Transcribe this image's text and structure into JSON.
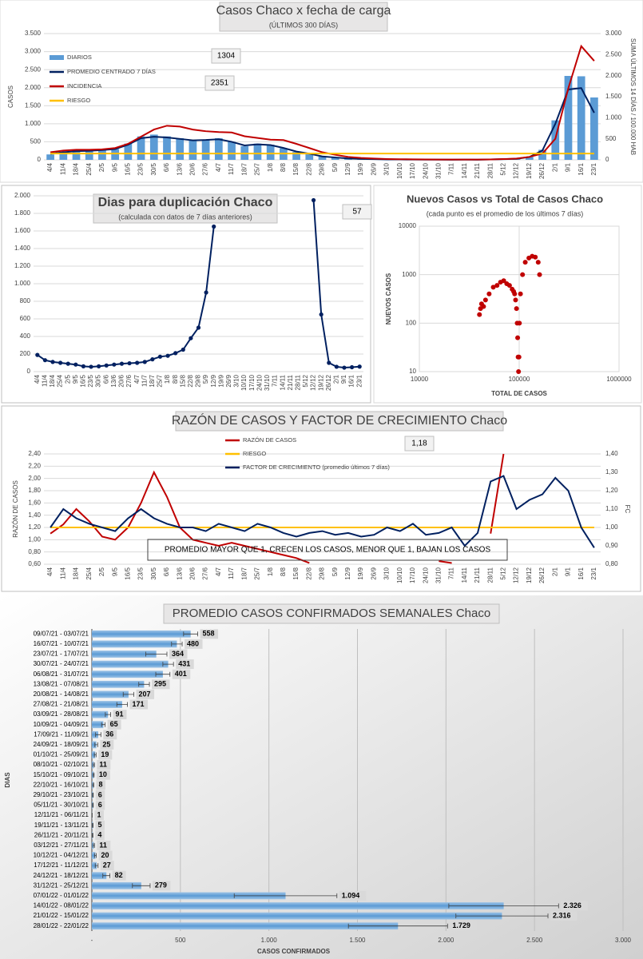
{
  "chart_data": [
    {
      "type": "combo",
      "title": "Casos  Chaco  x fecha de carga",
      "subtitle": "(ÚLTIMOS 300 DÍAS)",
      "y_label": "CASOS",
      "y2_label": "SUMA  ÚLTIMOS 14 DÍAS / 100.000 HAB",
      "legend": "upper left",
      "categories": [
        "4/4",
        "11/4",
        "18/4",
        "25/4",
        "2/5",
        "9/5",
        "16/5",
        "23/5",
        "30/5",
        "6/6",
        "13/6",
        "20/6",
        "27/6",
        "4/7",
        "11/7",
        "18/7",
        "25/7",
        "1/8",
        "8/8",
        "15/8",
        "22/8",
        "29/8",
        "5/9",
        "12/9",
        "19/9",
        "26/9",
        "3/10",
        "10/10",
        "17/10",
        "24/10",
        "31/10",
        "7/11",
        "14/11",
        "21/11",
        "28/11",
        "5/12",
        "12/12",
        "19/12",
        "26/12",
        "2/1",
        "9/1",
        "16/1",
        "23/1"
      ],
      "ylim": [
        0,
        3500
      ],
      "yticks": [
        {
          "value": 0,
          "label": "0"
        },
        {
          "value": 500,
          "label": "500"
        },
        {
          "value": 1000,
          "label": "1.000"
        },
        {
          "value": 1500,
          "label": "1.500"
        },
        {
          "value": 2000,
          "label": "2.000"
        },
        {
          "value": 2500,
          "label": "2.500"
        },
        {
          "value": 3000,
          "label": "3.000"
        },
        {
          "value": 3500,
          "label": "3.500"
        }
      ],
      "y2lim": [
        0,
        3000
      ],
      "y2ticks": [
        {
          "value": 0,
          "label": "0"
        },
        {
          "value": 500,
          "label": "500"
        },
        {
          "value": 1000,
          "label": "1.000"
        },
        {
          "value": 1500,
          "label": "1.500"
        },
        {
          "value": 2000,
          "label": "2.000"
        },
        {
          "value": 2500,
          "label": "2.500"
        },
        {
          "value": 3000,
          "label": "3.000"
        }
      ],
      "annotations": [
        1304,
        2351
      ],
      "series": [
        {
          "name": "DIARIOS",
          "type": "bar",
          "color": "#5b9bd5",
          "values": [
            150,
            200,
            250,
            260,
            280,
            300,
            450,
            650,
            700,
            650,
            600,
            550,
            560,
            600,
            500,
            380,
            450,
            420,
            320,
            220,
            170,
            90,
            65,
            36,
            25,
            19,
            11,
            10,
            8,
            6,
            6,
            1,
            5,
            4,
            11,
            20,
            27,
            82,
            279,
            1094,
            2326,
            2316,
            1729
          ]
        },
        {
          "name": "PROMEDIO CENTRADO 7 DÍAS",
          "type": "line",
          "color": "#002060",
          "values": [
            170,
            210,
            240,
            250,
            270,
            300,
            420,
            600,
            640,
            620,
            580,
            540,
            550,
            570,
            500,
            400,
            430,
            410,
            330,
            230,
            170,
            95,
            65,
            38,
            26,
            19,
            12,
            10,
            8,
            6,
            6,
            2,
            5,
            4,
            11,
            20,
            27,
            80,
            260,
            1000,
            1950,
            1990,
            1304
          ]
        },
        {
          "name": "INCIDENCIA",
          "type": "line",
          "color": "#c00000",
          "axis": "y2",
          "values": [
            180,
            220,
            240,
            240,
            250,
            280,
            380,
            550,
            720,
            810,
            790,
            720,
            680,
            660,
            650,
            560,
            520,
            480,
            470,
            380,
            280,
            180,
            120,
            70,
            45,
            30,
            20,
            15,
            12,
            10,
            8,
            6,
            6,
            6,
            10,
            18,
            30,
            70,
            150,
            500,
            1700,
            2700,
            2351
          ]
        },
        {
          "name": "RIESGO",
          "type": "line",
          "color": "#ffc000",
          "axis": "y2",
          "values": [
            150,
            150,
            150,
            150,
            150,
            150,
            150,
            150,
            150,
            150,
            150,
            150,
            150,
            150,
            150,
            150,
            150,
            150,
            150,
            150,
            150,
            150,
            150,
            150,
            150,
            150,
            150,
            150,
            150,
            150,
            150,
            150,
            150,
            150,
            150,
            150,
            150,
            150,
            150,
            150,
            150,
            150,
            150
          ]
        }
      ]
    },
    {
      "type": "line",
      "title": "Dias para duplicación Chaco",
      "subtitle": "(calculada con datos de 7 días anteriores)",
      "categories": [
        "4/4",
        "11/4",
        "18/4",
        "25/4",
        "2/5",
        "9/5",
        "16/5",
        "23/5",
        "30/5",
        "6/6",
        "13/6",
        "20/6",
        "27/6",
        "4/7",
        "11/7",
        "18/7",
        "25/7",
        "1/8",
        "8/8",
        "15/8",
        "22/8",
        "29/8",
        "5/9",
        "12/9",
        "19/9",
        "26/9",
        "3/10",
        "10/10",
        "17/10",
        "24/10",
        "31/10",
        "7/11",
        "14/11",
        "21/11",
        "28/11",
        "5/12",
        "12/12",
        "19/12",
        "26/12",
        "2/1",
        "9/1",
        "16/1",
        "23/1"
      ],
      "ylim": [
        0,
        2000
      ],
      "yticks": [
        {
          "value": 0,
          "label": "0"
        },
        {
          "value": 200,
          "label": "200"
        },
        {
          "value": 400,
          "label": "400"
        },
        {
          "value": 600,
          "label": "600"
        },
        {
          "value": 800,
          "label": "800"
        },
        {
          "value": 1000,
          "label": "1.000"
        },
        {
          "value": 1200,
          "label": "1.200"
        },
        {
          "value": 1400,
          "label": "1.400"
        },
        {
          "value": 1600,
          "label": "1.600"
        },
        {
          "value": 1800,
          "label": "1.800"
        },
        {
          "value": 2000,
          "label": "2.000"
        }
      ],
      "annotations": [
        57
      ],
      "markers": true,
      "series": [
        {
          "name": null,
          "type": "line",
          "color": "#002060",
          "values": [
            190,
            130,
            110,
            100,
            90,
            80,
            60,
            55,
            60,
            70,
            80,
            90,
            95,
            100,
            110,
            140,
            170,
            180,
            210,
            250,
            380,
            500,
            900,
            1650,
            null,
            null,
            null,
            null,
            null,
            null,
            null,
            null,
            null,
            null,
            null,
            null,
            1950,
            650,
            100,
            55,
            45,
            50,
            57
          ]
        }
      ]
    },
    {
      "type": "scatter",
      "title": "Nuevos Casos vs Total de Casos Chaco",
      "subtitle": "(cada punto es el promedio de los últimos 7 días)",
      "x_label": "TOTAL DE CASOS",
      "y_label": "NUEVOS  CASOS",
      "log_x": true,
      "log_y": true,
      "xlim": [
        10000,
        1000000
      ],
      "xticks": [
        10000,
        100000,
        1000000
      ],
      "ylim": [
        10,
        10000
      ],
      "yticks": [
        10,
        100,
        1000,
        10000
      ],
      "series": [
        {
          "name": null,
          "color": "#c00000",
          "x": [
            40000,
            41000,
            42000,
            44000,
            46000,
            50000,
            55000,
            60000,
            65000,
            70000,
            75000,
            80000,
            85000,
            88000,
            90000,
            92000,
            94000,
            95500,
            96500,
            97500,
            98500,
            99500,
            100500,
            103000,
            108000,
            115000,
            125000,
            135000,
            145000,
            155000,
            160000
          ],
          "y": [
            150,
            200,
            250,
            220,
            300,
            400,
            550,
            600,
            700,
            750,
            650,
            600,
            500,
            450,
            400,
            300,
            200,
            100,
            50,
            20,
            10,
            20,
            100,
            400,
            1000,
            1800,
            2200,
            2400,
            2300,
            1800,
            1000
          ]
        }
      ]
    },
    {
      "type": "line",
      "title": "RAZÓN DE CASOS Y FACTOR DE CRECIMIENTO Chaco",
      "legend": "upper center",
      "y_label": "RAZÓN DE CASOS",
      "y2_label": "FC",
      "note": "PROMEDIO MAYOR QUE 1, CRECEN LOS CASOS, MENOR QUE 1, BAJAN LOS CASOS",
      "annotations": [
        {
          "value": 1.18,
          "label": "1,18"
        }
      ],
      "categories": [
        "4/4",
        "11/4",
        "18/4",
        "25/4",
        "2/5",
        "9/5",
        "16/5",
        "23/5",
        "30/5",
        "6/6",
        "13/6",
        "20/6",
        "27/6",
        "4/7",
        "11/7",
        "18/7",
        "25/7",
        "1/8",
        "8/8",
        "15/8",
        "22/8",
        "29/8",
        "5/9",
        "12/9",
        "19/9",
        "26/9",
        "3/10",
        "10/10",
        "17/10",
        "24/10",
        "31/10",
        "7/11",
        "14/11",
        "21/11",
        "28/11",
        "5/12",
        "12/12",
        "19/12",
        "26/12",
        "2/1",
        "9/1",
        "16/1",
        "23/1"
      ],
      "ylim": [
        0.6,
        2.4
      ],
      "yticks": [
        {
          "value": 0.6,
          "label": "0,60"
        },
        {
          "value": 0.8,
          "label": "0,80"
        },
        {
          "value": 1.0,
          "label": "1,00"
        },
        {
          "value": 1.2,
          "label": "1,20"
        },
        {
          "value": 1.4,
          "label": "1,40"
        },
        {
          "value": 1.6,
          "label": "1,60"
        },
        {
          "value": 1.8,
          "label": "1,80"
        },
        {
          "value": 2.0,
          "label": "2,00"
        },
        {
          "value": 2.2,
          "label": "2,20"
        },
        {
          "value": 2.4,
          "label": "2,40"
        }
      ],
      "y2lim": [
        0.8,
        1.4
      ],
      "y2ticks": [
        {
          "value": 0.8,
          "label": "0,80"
        },
        {
          "value": 0.9,
          "label": "0,90"
        },
        {
          "value": 1.0,
          "label": "1,00"
        },
        {
          "value": 1.1,
          "label": "1,10"
        },
        {
          "value": 1.2,
          "label": "1,20"
        },
        {
          "value": 1.3,
          "label": "1,30"
        },
        {
          "value": 1.4,
          "label": "1,40"
        }
      ],
      "series": [
        {
          "name": "RAZÓN DE CASOS",
          "type": "line",
          "color": "#c00000",
          "values": [
            1.1,
            1.25,
            1.5,
            1.3,
            1.05,
            1.0,
            1.2,
            1.6,
            2.1,
            1.7,
            1.2,
            1.0,
            0.95,
            0.9,
            0.95,
            0.9,
            0.85,
            0.8,
            0.75,
            0.7,
            0.62,
            null,
            null,
            null,
            null,
            null,
            null,
            null,
            null,
            null,
            0.65,
            0.62,
            null,
            null,
            1.1,
            2.4,
            null,
            null,
            null,
            null,
            null,
            null,
            1.18
          ]
        },
        {
          "name": "RIESGO",
          "type": "line",
          "color": "#ffc000",
          "values": [
            1.2,
            1.2,
            1.2,
            1.2,
            1.2,
            1.2,
            1.2,
            1.2,
            1.2,
            1.2,
            1.2,
            1.2,
            1.2,
            1.2,
            1.2,
            1.2,
            1.2,
            1.2,
            1.2,
            1.2,
            1.2,
            1.2,
            1.2,
            1.2,
            1.2,
            1.2,
            1.2,
            1.2,
            1.2,
            1.2,
            1.2,
            1.2,
            1.2,
            1.2,
            1.2,
            1.2,
            1.2,
            1.2,
            1.2,
            1.2,
            1.2,
            1.2,
            1.2
          ]
        },
        {
          "name": "FACTOR DE CRECIMIENTO (promedio últimos 7 días)",
          "type": "line",
          "color": "#002060",
          "axis": "y2",
          "values": [
            1.0,
            1.1,
            1.05,
            1.02,
            1.0,
            0.98,
            1.05,
            1.1,
            1.05,
            1.02,
            1.0,
            1.0,
            0.98,
            1.02,
            1.0,
            0.98,
            1.02,
            1.0,
            0.97,
            0.95,
            0.97,
            0.98,
            0.96,
            0.97,
            0.95,
            0.96,
            1.0,
            0.98,
            1.02,
            0.96,
            0.97,
            1.0,
            0.9,
            0.97,
            1.25,
            1.28,
            1.1,
            1.15,
            1.18,
            1.27,
            1.2,
            1.0,
            0.89
          ]
        }
      ]
    },
    {
      "type": "hbar",
      "title": "PROMEDIO CASOS CONFIRMADOS SEMANALES Chaco",
      "y_label": "DIAS",
      "x_label": "CASOS CONFIRMADOS",
      "color": "#5b9bd5",
      "grid": true,
      "categories": [
        "09/07/21 - 03/07/21",
        "16/07/21 - 10/07/21",
        "23/07/21 - 17/07/21",
        "30/07/21 - 24/07/21",
        "06/08/21 - 31/07/21",
        "13/08/21 - 07/08/21",
        "20/08/21 - 14/08/21",
        "27/08/21 - 21/08/21",
        "03/09/21 - 28/08/21",
        "10/09/21 - 04/09/21",
        "17/09/21 - 11/09/21",
        "24/09/21 - 18/09/21",
        "01/10/21 - 25/09/21",
        "08/10/21 - 02/10/21",
        "15/10/21 - 09/10/21",
        "22/10/21 - 16/10/21",
        "29/10/21 - 23/10/21",
        "05/11/21 - 30/10/21",
        "12/11/21 - 06/11/21",
        "19/11/21 - 13/11/21",
        "26/11/21 - 20/11/21",
        "03/12/21 - 27/11/21",
        "10/12/21 - 04/12/21",
        "17/12/21 - 11/12/21",
        "24/12/21 - 18/12/21",
        "31/12/21 - 25/12/21",
        "07/01/22 - 01/01/22",
        "14/01/22 - 08/01/22",
        "21/01/22 - 15/01/22",
        "28/01/22 - 22/01/22"
      ],
      "values": [
        558,
        480,
        364,
        431,
        401,
        295,
        207,
        171,
        91,
        65,
        36,
        25,
        19,
        11,
        10,
        8,
        6,
        6,
        1,
        5,
        4,
        11,
        20,
        27,
        82,
        279,
        1094,
        2326,
        2316,
        1729
      ],
      "value_labels": [
        "558",
        "480",
        "364",
        "431",
        "401",
        "295",
        "207",
        "171",
        "91",
        "65",
        "36",
        "25",
        "19",
        "11",
        "10",
        "8",
        "6",
        "6",
        "1",
        "5",
        "4",
        "11",
        "20",
        "27",
        "82",
        "279",
        "1.094",
        "2.326",
        "2.316",
        "1.729"
      ],
      "errors": [
        40,
        30,
        60,
        30,
        40,
        30,
        30,
        30,
        15,
        10,
        15,
        8,
        5,
        4,
        3,
        3,
        2,
        2,
        1,
        2,
        2,
        4,
        5,
        8,
        20,
        50,
        290,
        310,
        260,
        280
      ],
      "xlim": [
        0,
        3000
      ],
      "xticks": [
        {
          "value": 0,
          "label": "-"
        },
        500,
        {
          "value": 1000,
          "label": "1.000"
        },
        {
          "value": 1500,
          "label": "1.500"
        },
        {
          "value": 2000,
          "label": "2.000"
        },
        {
          "value": 2500,
          "label": "2.500"
        },
        {
          "value": 3000,
          "label": "3.000"
        }
      ]
    }
  ]
}
